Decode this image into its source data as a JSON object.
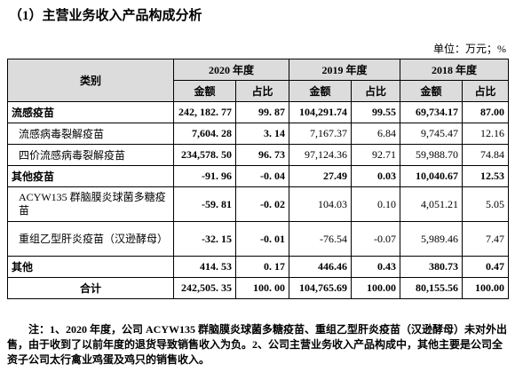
{
  "header": {
    "title": "（1）主营业务收入产品构成分析",
    "unit": "单位：万元；%"
  },
  "table": {
    "category_header": "类别",
    "years": [
      "2020 年度",
      "2019 年度",
      "2018 年度"
    ],
    "subheaders": [
      "金额",
      "占比",
      "金额",
      "占比",
      "金额",
      "占比"
    ],
    "rows": [
      [
        "流感疫苗",
        "242, 182. 77",
        "99. 87",
        "104,291.74",
        "99.55",
        "69,734.17",
        "87.00"
      ],
      [
        "流感病毒裂解疫苗",
        "7,604. 28",
        "3. 14",
        "7,167.37",
        "6.84",
        "9,745.47",
        "12.16"
      ],
      [
        "四价流感病毒裂解疫苗",
        "234,578. 50",
        "96. 73",
        "97,124.36",
        "92.71",
        "59,988.70",
        "74.84"
      ],
      [
        "其他疫苗",
        "-91. 96",
        "-0. 04",
        "27.49",
        "0.03",
        "10,040.67",
        "12.53"
      ],
      [
        "ACYW135 群脑膜炎球菌多糖疫苗",
        "-59. 81",
        "-0. 02",
        "104.03",
        "0.10",
        "4,051.21",
        "5.05"
      ],
      [
        "重组乙型肝炎疫苗（汉逊酵母）",
        "-32. 15",
        "-0. 01",
        "-76.54",
        "-0.07",
        "5,989.46",
        "7.47"
      ],
      [
        "其他",
        "414. 53",
        "0. 17",
        "446.46",
        "0.43",
        "380.73",
        "0.47"
      ],
      [
        "合计",
        "242,505. 35",
        "100. 00",
        "104,765.69",
        "100.00",
        "80,155.56",
        "100.00"
      ]
    ]
  },
  "note": "注：1、2020 年度，公司 ACYW135 群脑膜炎球菌多糖疫苗、重组乙型肝炎疫苗（汉逊酵母）未对外出售，由于收到了以前年度的退货导致销售收入为负。2、公司主营业务收入产品构成中，其他主要是公司全资子公司太行禽业鸡蛋及鸡只的销售收入。"
}
